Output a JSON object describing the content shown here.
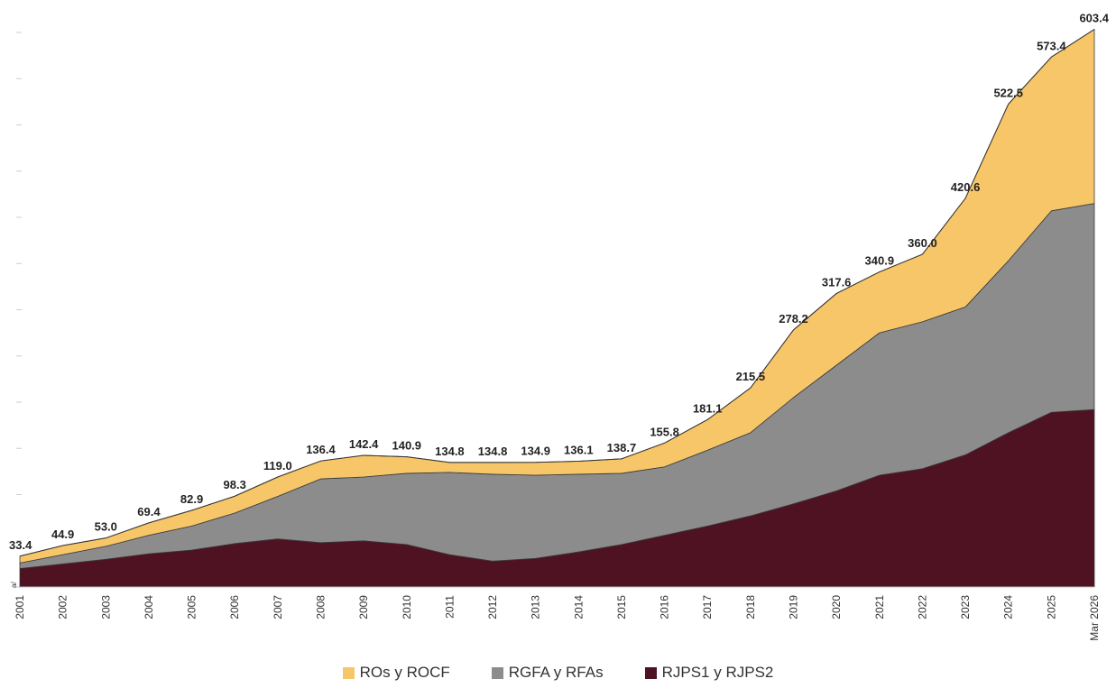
{
  "chart_data": {
    "type": "area",
    "stacked": true,
    "categories": [
      "2001",
      "2002",
      "2003",
      "2004",
      "2005",
      "2006",
      "2007",
      "2008",
      "2009",
      "2010",
      "2011",
      "2012",
      "2013",
      "2014",
      "2015",
      "2016",
      "2017",
      "2018",
      "2019",
      "2020",
      "2021",
      "2022",
      "2023",
      "2024",
      "2025",
      "Mar 2026"
    ],
    "first_category_superscript": "a/",
    "totals": [
      33.4,
      44.9,
      53.0,
      69.4,
      82.9,
      98.3,
      119.0,
      136.4,
      142.4,
      140.9,
      134.8,
      134.8,
      134.9,
      136.1,
      138.7,
      155.8,
      181.1,
      215.5,
      278.2,
      317.6,
      340.9,
      360.0,
      420.6,
      522.5,
      573.4,
      603.4
    ],
    "total_labels": [
      "33.4",
      "44.9",
      "53.0",
      "69.4",
      "82.9",
      "98.3",
      "119.0",
      "136.4",
      "142.4",
      "140.9",
      "134.8",
      "134.8",
      "134.9",
      "136.1",
      "138.7",
      "155.8",
      "181.1",
      "215.5",
      "278.2",
      "317.6",
      "340.9",
      "360.0",
      "420.6",
      "522.5",
      "573.4",
      "603.4"
    ],
    "series": [
      {
        "name": "RJPS1 y RJPS2",
        "color": "#4f1222",
        "values": [
          20.0,
          25.0,
          30.0,
          36.0,
          40.0,
          47.0,
          52.0,
          48.0,
          50.0,
          46.0,
          35.0,
          28.0,
          31.0,
          38.0,
          46.0,
          56.0,
          66.0,
          77.0,
          90.0,
          104.0,
          121.0,
          128.0,
          143.0,
          167.0,
          189.0,
          192.0
        ]
      },
      {
        "name": "RGFA y RFAs",
        "color": "#8c8c8c",
        "values": [
          6.0,
          10.0,
          14.0,
          20.0,
          26.0,
          33.0,
          46.0,
          69.0,
          69.0,
          77.0,
          89.0,
          94.0,
          90.0,
          84.0,
          77.0,
          74.0,
          82.0,
          90.0,
          115.0,
          136.0,
          154.0,
          159.0,
          160.0,
          186.0,
          218.0,
          223.0
        ]
      },
      {
        "name": "ROs y ROCF",
        "color": "#f6c668",
        "values": [
          7.4,
          9.9,
          9.0,
          13.4,
          16.9,
          18.3,
          21.0,
          19.4,
          23.4,
          17.9,
          10.8,
          12.8,
          13.9,
          14.1,
          15.7,
          25.8,
          33.1,
          48.5,
          73.2,
          77.6,
          65.9,
          73.0,
          117.6,
          169.5,
          166.4,
          188.4
        ]
      }
    ],
    "legend": [
      "ROs y ROCF",
      "RGFA y RFAs",
      "RJPS1 y RJPS2"
    ],
    "legend_position": "bottom",
    "ylim": [
      0,
      600
    ],
    "y_tick_labels_shown": false,
    "grid": false
  }
}
